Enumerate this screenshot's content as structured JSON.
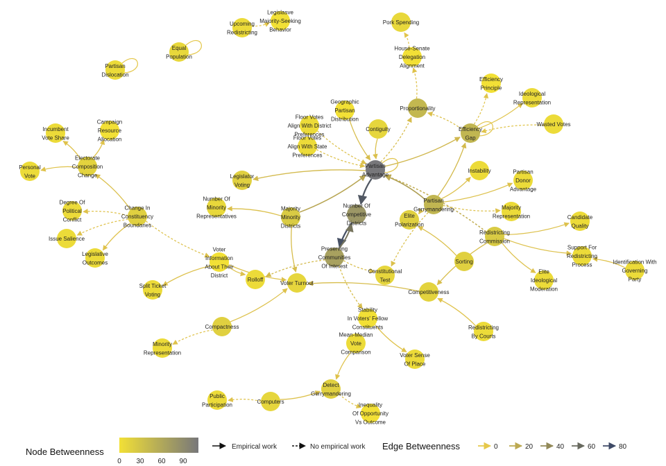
{
  "legend": {
    "node_title": "Node Betweenness",
    "node_ticks": [
      "0",
      "30",
      "60",
      "90"
    ],
    "empirical": "Empirical work",
    "no_empirical": "No empirical work",
    "edge_title": "Edge Betweenness",
    "edge_ticks": [
      "0",
      "20",
      "40",
      "60",
      "80"
    ]
  },
  "colors": {
    "low": "#f2e036",
    "high": "#77777a",
    "edge_low": "#e6c84a",
    "edge_high": "#3e4a66"
  },
  "nodes": [
    {
      "id": "upcoming",
      "label": [
        "Upcoming",
        "Redistricting"
      ],
      "b": 5
    },
    {
      "id": "legis",
      "label": [
        "Legislasve",
        "Majority-Seeking",
        "Behavior"
      ],
      "b": 0
    },
    {
      "id": "equalpop",
      "label": [
        "Equal",
        "Population"
      ],
      "b": 8
    },
    {
      "id": "partisandis",
      "label": [
        "Partisan",
        "Dislocation"
      ],
      "b": 5
    },
    {
      "id": "pork",
      "label": [
        "Pork Spending"
      ],
      "b": 8
    },
    {
      "id": "housesenate",
      "label": [
        "House-Senate",
        "Delegation",
        "Alignment"
      ],
      "b": 0
    },
    {
      "id": "proportionality",
      "label": [
        "Proportionality"
      ],
      "b": 38
    },
    {
      "id": "effprinciple",
      "label": [
        "Efficiency",
        "Principle"
      ],
      "b": 0
    },
    {
      "id": "ideorep",
      "label": [
        "Ideological",
        "Representation"
      ],
      "b": 5
    },
    {
      "id": "wasted",
      "label": [
        "Wasted Votes"
      ],
      "b": 5
    },
    {
      "id": "effgap",
      "label": [
        "Efficiency",
        "Gap"
      ],
      "b": 40
    },
    {
      "id": "geopartisan",
      "label": [
        "Geographic",
        "Partisan",
        "Distribution"
      ],
      "b": 0
    },
    {
      "id": "contiguity",
      "label": [
        "Contiguity"
      ],
      "b": 10
    },
    {
      "id": "floorvotes1",
      "label": [
        "Floor Votes",
        "Align With District",
        "Preferences"
      ],
      "b": 5
    },
    {
      "id": "floorvotes2",
      "label": [
        "Floor Votes",
        "Align With State",
        "Preferences"
      ],
      "b": 5
    },
    {
      "id": "partisanadv",
      "label": [
        "Partisan",
        "Advantage"
      ],
      "b": 100
    },
    {
      "id": "incumbent",
      "label": [
        "Incumbent",
        "Vote Share"
      ],
      "b": 5
    },
    {
      "id": "campaign",
      "label": [
        "Campaign",
        "Resource",
        "Allocation"
      ],
      "b": 0
    },
    {
      "id": "electcomp",
      "label": [
        "Electorate",
        "Composition",
        "Change"
      ],
      "b": 12
    },
    {
      "id": "personal",
      "label": [
        "Personal",
        "Vote"
      ],
      "b": 5
    },
    {
      "id": "legvoting",
      "label": [
        "Legislator",
        "Voting"
      ],
      "b": 15
    },
    {
      "id": "instability",
      "label": [
        "Instability"
      ],
      "b": 5
    },
    {
      "id": "donor",
      "label": [
        "Partisan",
        "Donor",
        "Advantage"
      ],
      "b": 5
    },
    {
      "id": "numminority",
      "label": [
        "Number Of",
        "Minority",
        "Representatives"
      ],
      "b": 8
    },
    {
      "id": "majminority",
      "label": [
        "Majority",
        "Minority",
        "Districts"
      ],
      "b": 20
    },
    {
      "id": "numcompetitive",
      "label": [
        "Number Of",
        "Competitive",
        "Districts"
      ],
      "b": 70
    },
    {
      "id": "elitepol",
      "label": [
        "Elite",
        "Polarization"
      ],
      "b": 15
    },
    {
      "id": "partisangerry",
      "label": [
        "Partisan",
        "Gerrymandering"
      ],
      "b": 40
    },
    {
      "id": "majrep",
      "label": [
        "Majority",
        "Representation"
      ],
      "b": 5
    },
    {
      "id": "candqual",
      "label": [
        "Candidate",
        "Quality"
      ],
      "b": 5
    },
    {
      "id": "degreepol",
      "label": [
        "Degree Of",
        "Political",
        "Conflict"
      ],
      "b": 5
    },
    {
      "id": "changeconst",
      "label": [
        "Change In",
        "Constituency",
        "Boundaries"
      ],
      "b": 15
    },
    {
      "id": "redistcomm",
      "label": [
        "Redistricting",
        "Commission"
      ],
      "b": 20
    },
    {
      "id": "issuesal",
      "label": [
        "Issue Salience"
      ],
      "b": 5
    },
    {
      "id": "preserving",
      "label": [
        "Preserving",
        "Communities",
        "Of Interest"
      ],
      "b": 60
    },
    {
      "id": "supportredist",
      "label": [
        "Support For",
        "Redistricting",
        "Process"
      ],
      "b": 5
    },
    {
      "id": "legoutcomes",
      "label": [
        "Legislative",
        "Outcomes"
      ],
      "b": 5
    },
    {
      "id": "voterinfo",
      "label": [
        "Voter",
        "Information",
        "About Their",
        "District"
      ],
      "b": 0
    },
    {
      "id": "sorting",
      "label": [
        "Sorting"
      ],
      "b": 15
    },
    {
      "id": "idwithgov",
      "label": [
        "Identification With",
        "Governing",
        "Party"
      ],
      "b": 5
    },
    {
      "id": "constest",
      "label": [
        "Constitutional",
        "Test"
      ],
      "b": 10
    },
    {
      "id": "eliteideo",
      "label": [
        "Elite",
        "Ideological",
        "Moderation"
      ],
      "b": 5
    },
    {
      "id": "rolloff",
      "label": [
        "Rolloff"
      ],
      "b": 5
    },
    {
      "id": "voterturnout",
      "label": [
        "Voter Turnout"
      ],
      "b": 10
    },
    {
      "id": "splitticket",
      "label": [
        "Split Ticket",
        "Voting"
      ],
      "b": 5
    },
    {
      "id": "competitiveness",
      "label": [
        "Competitiveness"
      ],
      "b": 12
    },
    {
      "id": "stability",
      "label": [
        "Stability",
        "In Voters' Fellow",
        "Constituents"
      ],
      "b": 0
    },
    {
      "id": "compactness",
      "label": [
        "Compactness"
      ],
      "b": 15
    },
    {
      "id": "redistcourts",
      "label": [
        "Redistricting",
        "By Courts"
      ],
      "b": 5
    },
    {
      "id": "meanmedian",
      "label": [
        "Mean-Median",
        "Vote",
        "Comparison"
      ],
      "b": 5
    },
    {
      "id": "votersense",
      "label": [
        "Voter Sense",
        "Of Place"
      ],
      "b": 5
    },
    {
      "id": "minorityrep",
      "label": [
        "Minority",
        "Representation"
      ],
      "b": 5
    },
    {
      "id": "detect",
      "label": [
        "Detect",
        "Gerrymandering"
      ],
      "b": 15
    },
    {
      "id": "public",
      "label": [
        "Public",
        "Participation"
      ],
      "b": 5
    },
    {
      "id": "computers",
      "label": [
        "Computers"
      ],
      "b": 10
    },
    {
      "id": "inequality",
      "label": [
        "Inequality",
        "Of Opportunity",
        "Vs Outcome"
      ],
      "b": 0
    }
  ],
  "edges": [
    {
      "from": "upcoming",
      "to": "legis",
      "empirical": false,
      "b": 1
    },
    {
      "from": "equalpop",
      "to": "equalpop",
      "empirical": true,
      "b": 1
    },
    {
      "from": "partisandis",
      "to": "partisandis",
      "empirical": true,
      "b": 1
    },
    {
      "from": "housesenate",
      "to": "pork",
      "empirical": false,
      "b": 2
    },
    {
      "from": "proportionality",
      "to": "housesenate",
      "empirical": false,
      "b": 4
    },
    {
      "from": "effgap",
      "to": "proportionality",
      "empirical": false,
      "b": 6
    },
    {
      "from": "effgap",
      "to": "effprinciple",
      "empirical": false,
      "b": 3
    },
    {
      "from": "effgap",
      "to": "ideorep",
      "empirical": true,
      "b": 3
    },
    {
      "from": "wasted",
      "to": "effgap",
      "empirical": false,
      "b": 3
    },
    {
      "from": "effgap",
      "to": "effgap",
      "empirical": true,
      "b": 2
    },
    {
      "from": "partisanadv",
      "to": "effgap",
      "empirical": true,
      "b": 12
    },
    {
      "from": "partisanadv",
      "to": "proportionality",
      "empirical": false,
      "b": 8
    },
    {
      "from": "geopartisan",
      "to": "partisanadv",
      "empirical": true,
      "b": 8
    },
    {
      "from": "contiguity",
      "to": "partisanadv",
      "empirical": true,
      "b": 6
    },
    {
      "from": "floorvotes1",
      "to": "partisanadv",
      "empirical": false,
      "b": 5
    },
    {
      "from": "floorvotes2",
      "to": "partisanadv",
      "empirical": false,
      "b": 5
    },
    {
      "from": "partisanadv",
      "to": "partisanadv",
      "empirical": true,
      "b": 3
    },
    {
      "from": "partisanadv",
      "to": "legvoting",
      "empirical": true,
      "b": 10
    },
    {
      "from": "partisanadv",
      "to": "numcompetitive",
      "empirical": true,
      "b": 80
    },
    {
      "from": "partisangerry",
      "to": "partisanadv",
      "empirical": true,
      "b": 30
    },
    {
      "from": "majminority",
      "to": "partisanadv",
      "empirical": true,
      "b": 25
    },
    {
      "from": "electcomp",
      "to": "incumbent",
      "empirical": true,
      "b": 4
    },
    {
      "from": "electcomp",
      "to": "campaign",
      "empirical": true,
      "b": 4
    },
    {
      "from": "electcomp",
      "to": "personal",
      "empirical": true,
      "b": 4
    },
    {
      "from": "changeconst",
      "to": "electcomp",
      "empirical": true,
      "b": 6
    },
    {
      "from": "changeconst",
      "to": "degreepol",
      "empirical": false,
      "b": 4
    },
    {
      "from": "changeconst",
      "to": "issuesal",
      "empirical": false,
      "b": 4
    },
    {
      "from": "changeconst",
      "to": "legoutcomes",
      "empirical": true,
      "b": 4
    },
    {
      "from": "changeconst",
      "to": "voterinfo",
      "empirical": false,
      "b": 5
    },
    {
      "from": "majminority",
      "to": "numminority",
      "empirical": true,
      "b": 6
    },
    {
      "from": "majminority",
      "to": "voterturnout",
      "empirical": true,
      "b": 8
    },
    {
      "from": "partisangerry",
      "to": "instability",
      "empirical": true,
      "b": 5
    },
    {
      "from": "partisangerry",
      "to": "donor",
      "empirical": true,
      "b": 5
    },
    {
      "from": "partisangerry",
      "to": "majrep",
      "empirical": false,
      "b": 5
    },
    {
      "from": "partisangerry",
      "to": "effgap",
      "empirical": true,
      "b": 10
    },
    {
      "from": "partisangerry",
      "to": "elitepol",
      "empirical": false,
      "b": 8
    },
    {
      "from": "partisangerry",
      "to": "constest",
      "empirical": false,
      "b": 6
    },
    {
      "from": "redistcomm",
      "to": "candqual",
      "empirical": true,
      "b": 5
    },
    {
      "from": "redistcomm",
      "to": "supportredist",
      "empirical": true,
      "b": 5
    },
    {
      "from": "redistcomm",
      "to": "eliteideo",
      "empirical": true,
      "b": 5
    },
    {
      "from": "redistcomm",
      "to": "partisanadv",
      "empirical": false,
      "b": 20
    },
    {
      "from": "redistcomm",
      "to": "competitiveness",
      "empirical": true,
      "b": 8
    },
    {
      "from": "idwithgov",
      "to": "supportredist",
      "empirical": true,
      "b": 4
    },
    {
      "from": "numcompetitive",
      "to": "preserving",
      "empirical": true,
      "b": 85
    },
    {
      "from": "preserving",
      "to": "numcompetitive",
      "empirical": true,
      "b": 60
    },
    {
      "from": "preserving",
      "to": "rolloff",
      "empirical": false,
      "b": 10
    },
    {
      "from": "preserving",
      "to": "constest",
      "empirical": false,
      "b": 8
    },
    {
      "from": "preserving",
      "to": "stability",
      "empirical": false,
      "b": 8
    },
    {
      "from": "sorting",
      "to": "elitepol",
      "empirical": true,
      "b": 6
    },
    {
      "from": "voterinfo",
      "to": "rolloff",
      "empirical": true,
      "b": 5
    },
    {
      "from": "voterinfo",
      "to": "voterturnout",
      "empirical": true,
      "b": 5
    },
    {
      "from": "voterinfo",
      "to": "splitticket",
      "empirical": true,
      "b": 5
    },
    {
      "from": "competitiveness",
      "to": "voterturnout",
      "empirical": true,
      "b": 8
    },
    {
      "from": "redistcourts",
      "to": "competitiveness",
      "empirical": true,
      "b": 4
    },
    {
      "from": "stability",
      "to": "votersense",
      "empirical": true,
      "b": 4
    },
    {
      "from": "compactness",
      "to": "voterturnout",
      "empirical": true,
      "b": 5
    },
    {
      "from": "compactness",
      "to": "minorityrep",
      "empirical": false,
      "b": 4
    },
    {
      "from": "meanmedian",
      "to": "detect",
      "empirical": true,
      "b": 4
    },
    {
      "from": "computers",
      "to": "public",
      "empirical": false,
      "b": 4
    },
    {
      "from": "computers",
      "to": "detect",
      "empirical": true,
      "b": 5
    },
    {
      "from": "detect",
      "to": "inequality",
      "empirical": false,
      "b": 3
    }
  ]
}
